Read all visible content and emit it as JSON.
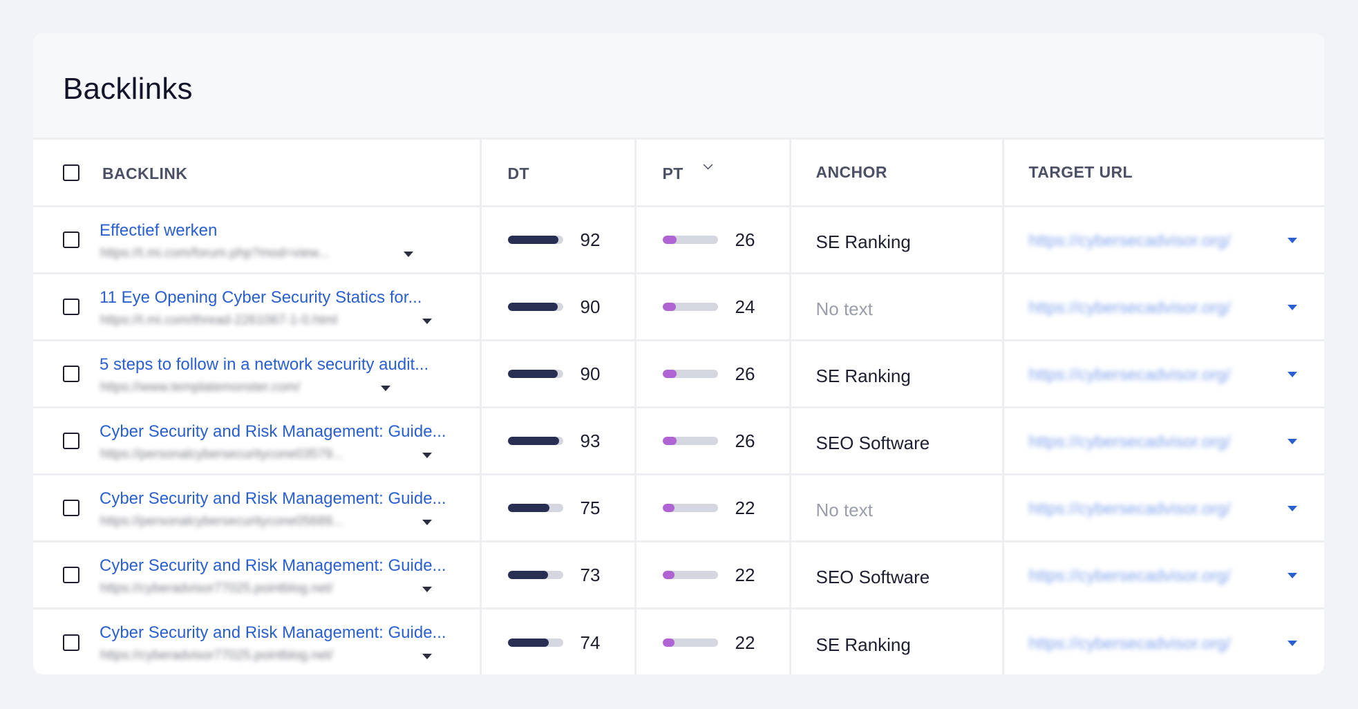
{
  "card": {
    "title": "Backlinks"
  },
  "columns": {
    "backlink": "BACKLINK",
    "dt": "DT",
    "pt": "PT",
    "anchor": "ANCHOR",
    "target_url": "TARGET URL"
  },
  "colors": {
    "link": "#2a5fcf",
    "dt_bar": "#282f52",
    "pt_bar": "#b064d4",
    "bar_track": "#d5d7e0"
  },
  "rows": [
    {
      "title": "Effectief werken",
      "url": "https://t.mi.com/forum.php?mod=view...",
      "dt": 92,
      "pt": 26,
      "anchor": "SE Ranking",
      "anchor_muted": false,
      "target": "https://cybersecadvisor.org/"
    },
    {
      "title": "11 Eye Opening Cyber Security Statics for...",
      "url": "https://t.mi.com/thread-2261067-1-0.html",
      "dt": 90,
      "pt": 24,
      "anchor": "No text",
      "anchor_muted": true,
      "target": "https://cybersecadvisor.org/"
    },
    {
      "title": "5 steps to follow in a network security audit...",
      "url": "https://www.templatemonster.com/",
      "dt": 90,
      "pt": 26,
      "anchor": "SE Ranking",
      "anchor_muted": false,
      "target": "https://cybersecadvisor.org/"
    },
    {
      "title": "Cyber Security and Risk Management: Guide...",
      "url": "https://personalcybersecuritycone03579...",
      "dt": 93,
      "pt": 26,
      "anchor": "SEO Software",
      "anchor_muted": false,
      "target": "https://cybersecadvisor.org/"
    },
    {
      "title": "Cyber Security and Risk Management: Guide...",
      "url": "https://personalcybersecuritycone05689...",
      "dt": 75,
      "pt": 22,
      "anchor": "No text",
      "anchor_muted": true,
      "target": "https://cybersecadvisor.org/"
    },
    {
      "title": "Cyber Security and Risk Management: Guide...",
      "url": "https://cyberadvisor77025.pointblog.net/",
      "dt": 73,
      "pt": 22,
      "anchor": "SEO Software",
      "anchor_muted": false,
      "target": "https://cybersecadvisor.org/"
    },
    {
      "title": "Cyber Security and Risk Management: Guide...",
      "url": "https://cyberadvisor77025.pointblog.net/",
      "dt": 74,
      "pt": 22,
      "anchor": "SE Ranking",
      "anchor_muted": false,
      "target": "https://cybersecadvisor.org/"
    }
  ]
}
